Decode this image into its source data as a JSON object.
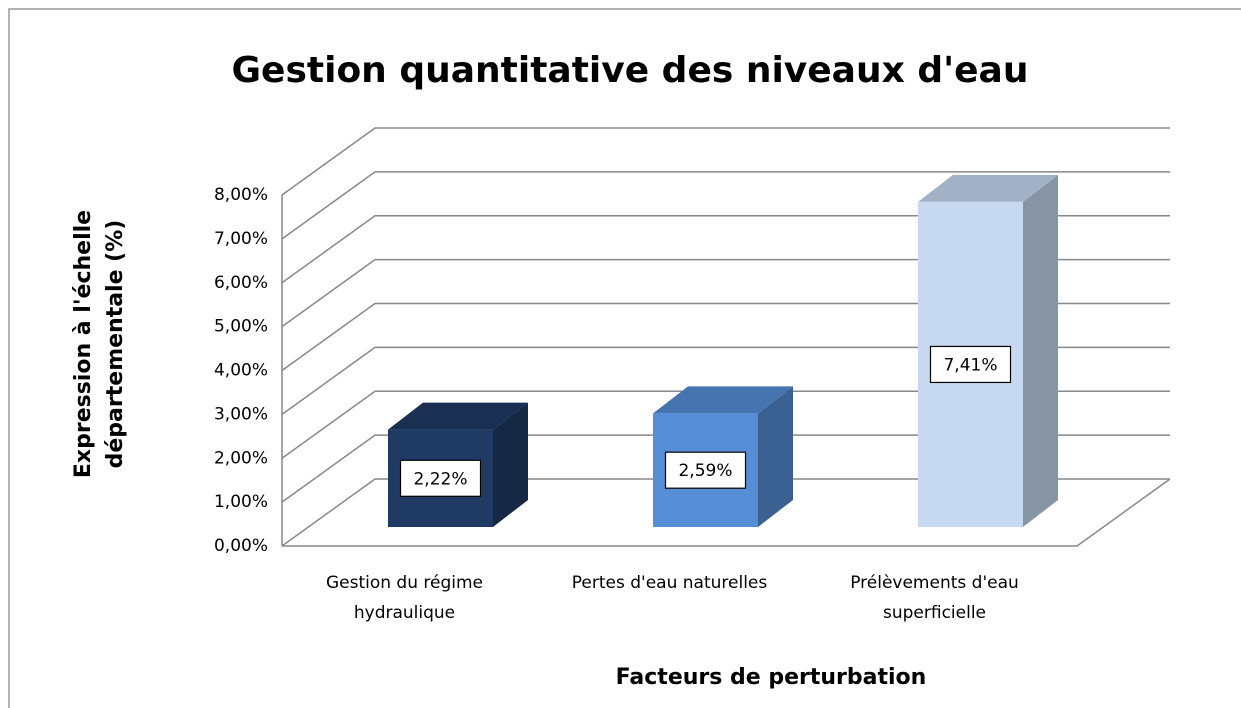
{
  "chart_data": {
    "type": "bar3d",
    "title": "Gestion quantitative des niveaux d'eau",
    "xlabel": "Facteurs de perturbation",
    "ylabel": "Expression à l'échelle départementale (%)",
    "categories": [
      "Gestion du régime hydraulique",
      "Pertes d'eau naturelles",
      "Prélèvements d'eau superficielle"
    ],
    "values": [
      2.22,
      2.59,
      7.41
    ],
    "value_labels": [
      "2,22%",
      "2,59%",
      "7,41%"
    ],
    "colors": [
      "#1f3b64",
      "#558ed5",
      "#c6d9f1"
    ],
    "ylim": [
      0,
      8
    ],
    "yticks": [
      {
        "value": 0,
        "label": "0,00%"
      },
      {
        "value": 1,
        "label": "1,00%"
      },
      {
        "value": 2,
        "label": "2,00%"
      },
      {
        "value": 3,
        "label": "3,00%"
      },
      {
        "value": 4,
        "label": "4,00%"
      },
      {
        "value": 5,
        "label": "5,00%"
      },
      {
        "value": 6,
        "label": "6,00%"
      },
      {
        "value": 7,
        "label": "7,00%"
      },
      {
        "value": 8,
        "label": "8,00%"
      }
    ],
    "grid": true
  }
}
